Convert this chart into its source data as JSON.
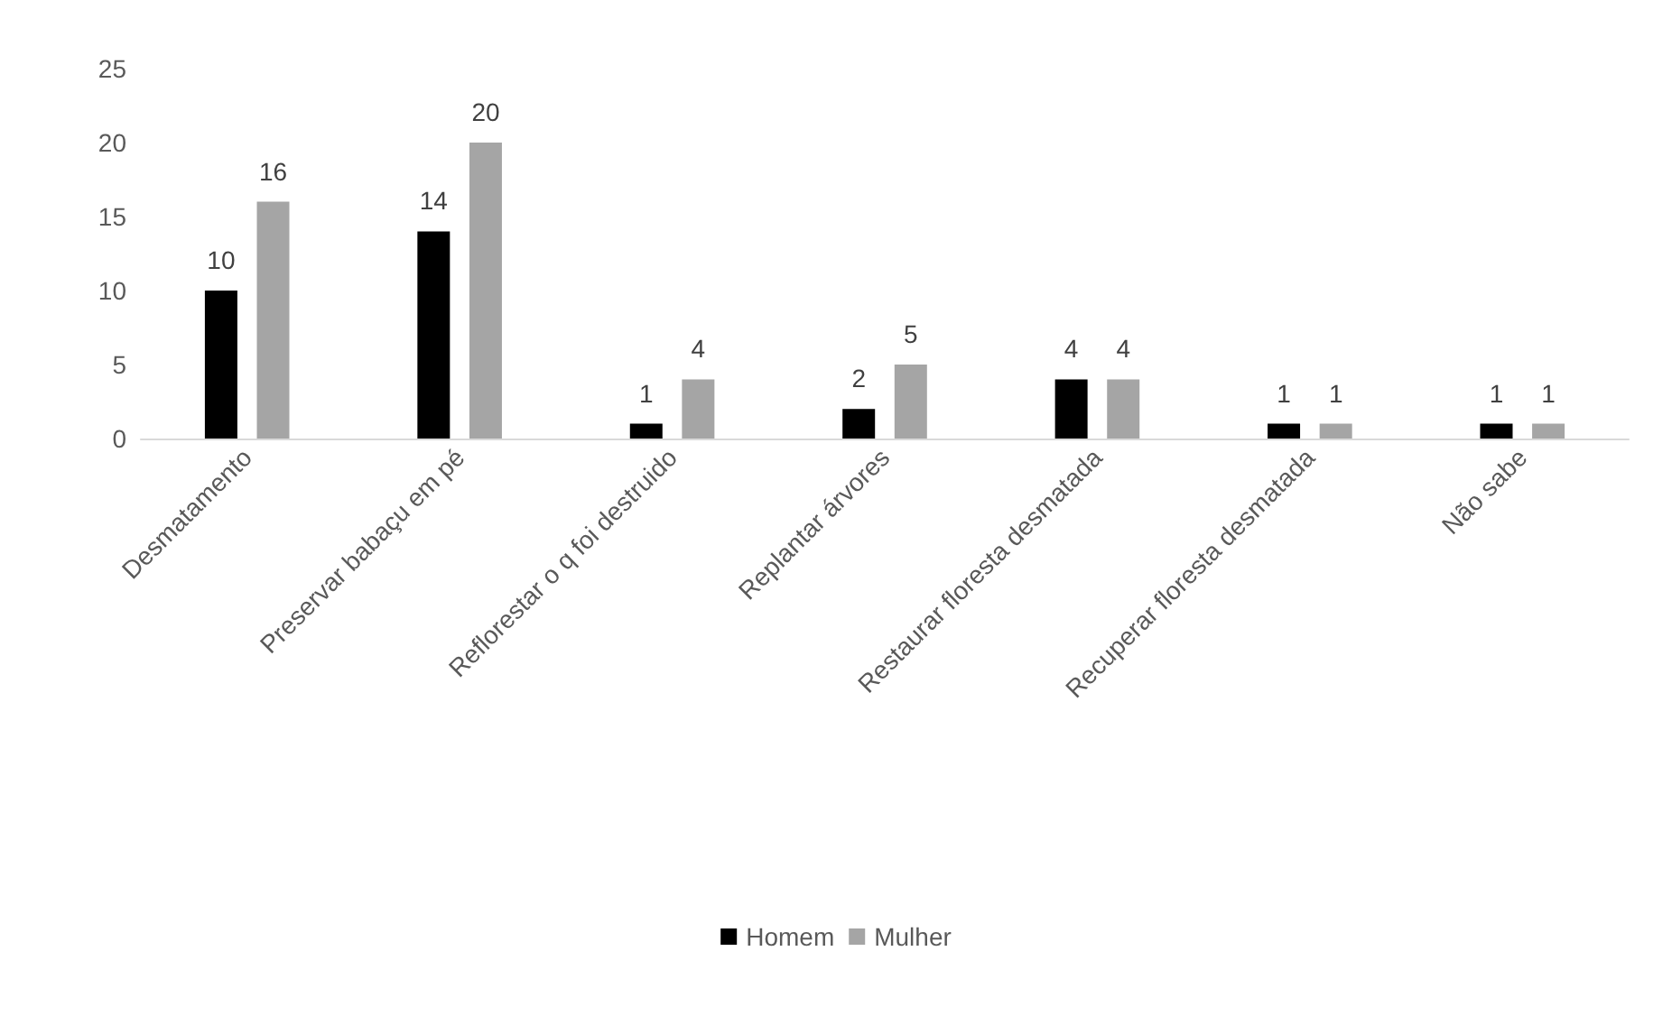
{
  "chart_data": {
    "type": "bar",
    "categories": [
      "Desmatamento",
      "Preservar babaçu em pé",
      "Reflorestar o q foi destruido",
      "Replantar árvores",
      "Restaurar floresta desmatada",
      "Recuperar floresta desmatada",
      "Não sabe"
    ],
    "series": [
      {
        "name": "Homem",
        "color": "#000000",
        "values": [
          10,
          14,
          1,
          2,
          4,
          1,
          1
        ]
      },
      {
        "name": "Mulher",
        "color": "#a5a5a5",
        "values": [
          16,
          20,
          4,
          5,
          4,
          1,
          1
        ]
      }
    ],
    "ylim": [
      0,
      25
    ],
    "yticks": [
      0,
      5,
      10,
      15,
      20,
      25
    ],
    "grid": false,
    "legend": "bottom",
    "data_labels": true
  }
}
